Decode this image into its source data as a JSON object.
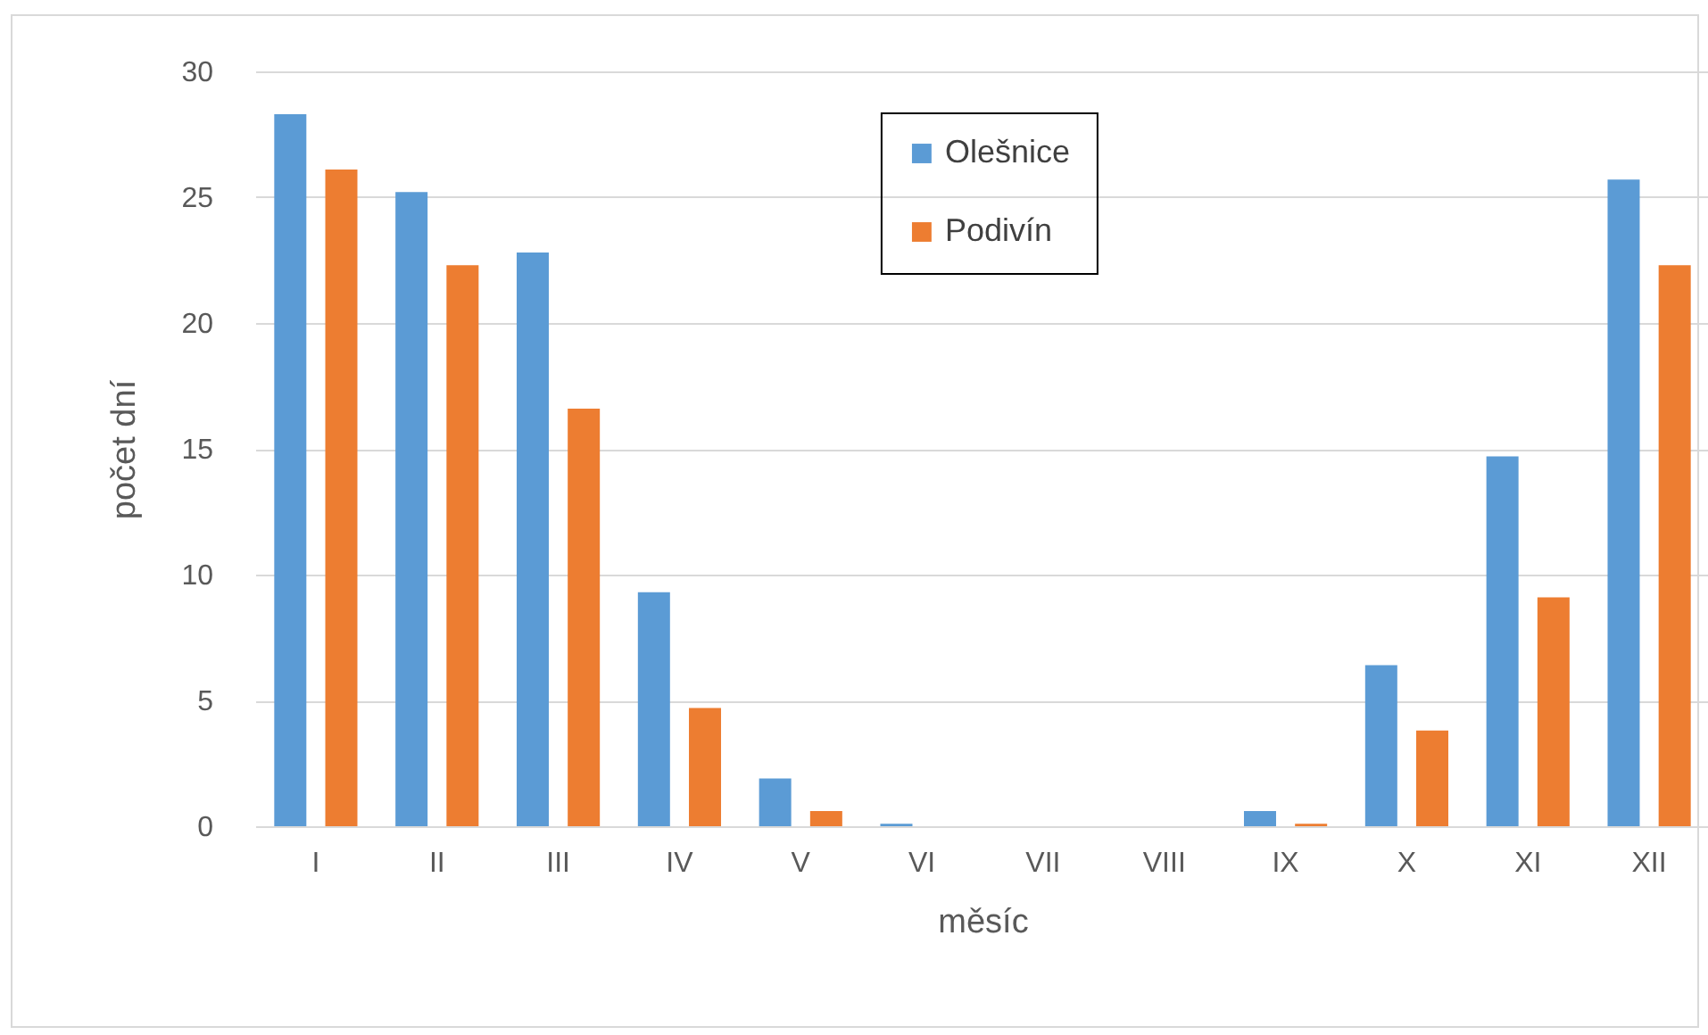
{
  "chart_data": {
    "type": "bar",
    "xlabel": "měsíc",
    "ylabel": "počet dní",
    "categories": [
      "I",
      "II",
      "III",
      "IV",
      "V",
      "VI",
      "VII",
      "VIII",
      "IX",
      "X",
      "XI",
      "XII"
    ],
    "series": [
      {
        "name": "Olešnice",
        "color": "#5b9bd5",
        "values": [
          28.3,
          25.2,
          22.8,
          9.3,
          1.9,
          0.1,
          0,
          0,
          0.6,
          6.4,
          14.7,
          25.7
        ]
      },
      {
        "name": "Podivín",
        "color": "#ed7d31",
        "values": [
          26.1,
          22.3,
          16.6,
          4.7,
          0.6,
          0,
          0,
          0,
          0.1,
          3.8,
          9.1,
          22.3
        ]
      }
    ],
    "ylim": [
      0,
      30
    ],
    "yticks": [
      0,
      5,
      10,
      15,
      20,
      25,
      30
    ],
    "grid": "y",
    "legend": "top"
  }
}
